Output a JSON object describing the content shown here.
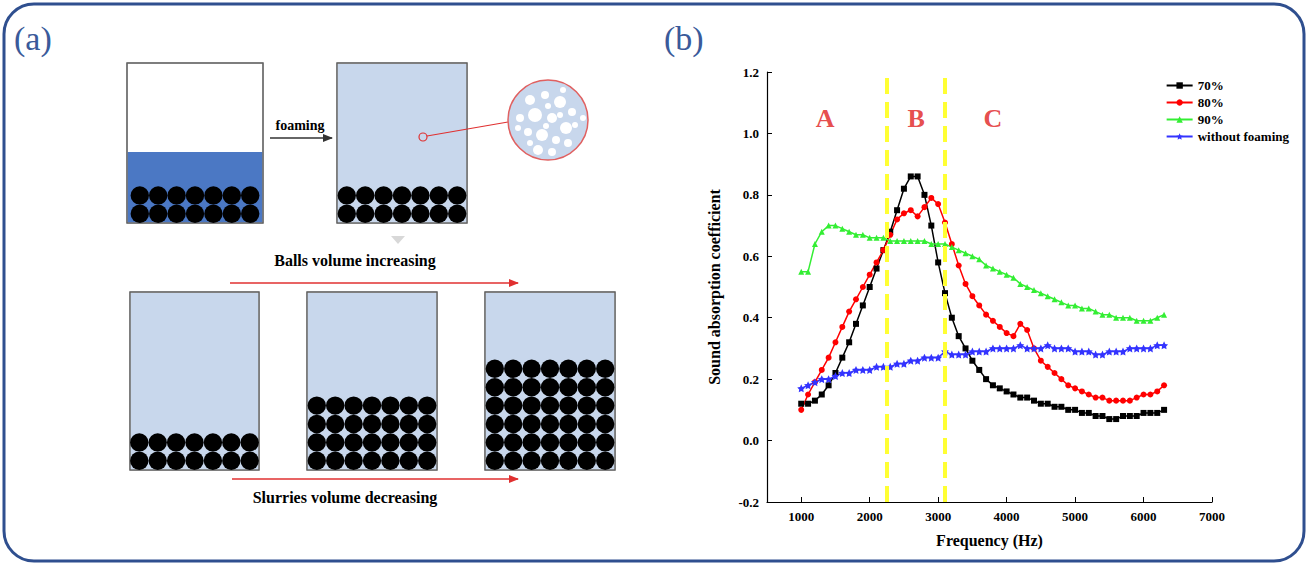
{
  "diagram": {
    "panel_label": "(a)",
    "arrow_label": "foaming",
    "top_caption": "Balls volume increasing",
    "bottom_caption": "Slurries volume decreasing"
  },
  "chart_data": {
    "panel_label": "(b)",
    "type": "line",
    "x_label": "Frequency (Hz)",
    "y_label": "Sound absorption coefficient",
    "x": [
      1000,
      1100,
      1200,
      1300,
      1400,
      1500,
      1600,
      1700,
      1800,
      1900,
      2000,
      2100,
      2200,
      2300,
      2400,
      2500,
      2600,
      2700,
      2800,
      2900,
      3000,
      3100,
      3200,
      3300,
      3400,
      3500,
      3600,
      3700,
      3800,
      3900,
      4000,
      4100,
      4200,
      4300,
      4400,
      4500,
      4600,
      4700,
      4800,
      4900,
      5000,
      5100,
      5200,
      5300,
      5400,
      5500,
      5600,
      5700,
      5800,
      5900,
      6000,
      6100,
      6200,
      6300
    ],
    "series": [
      {
        "name": "70%",
        "color": "#000000",
        "marker": "square",
        "values": [
          0.12,
          0.12,
          0.13,
          0.15,
          0.18,
          0.22,
          0.27,
          0.32,
          0.38,
          0.44,
          0.5,
          0.56,
          0.62,
          0.68,
          0.75,
          0.82,
          0.86,
          0.86,
          0.8,
          0.7,
          0.58,
          0.48,
          0.4,
          0.34,
          0.3,
          0.26,
          0.23,
          0.2,
          0.18,
          0.17,
          0.16,
          0.15,
          0.14,
          0.14,
          0.13,
          0.12,
          0.12,
          0.11,
          0.11,
          0.1,
          0.1,
          0.09,
          0.09,
          0.08,
          0.08,
          0.07,
          0.07,
          0.08,
          0.08,
          0.08,
          0.09,
          0.09,
          0.09,
          0.1
        ]
      },
      {
        "name": "80%",
        "color": "#ff0000",
        "marker": "circle",
        "values": [
          0.1,
          0.15,
          0.19,
          0.23,
          0.27,
          0.32,
          0.37,
          0.42,
          0.46,
          0.5,
          0.54,
          0.58,
          0.62,
          0.67,
          0.72,
          0.74,
          0.75,
          0.73,
          0.76,
          0.79,
          0.77,
          0.71,
          0.64,
          0.57,
          0.51,
          0.47,
          0.44,
          0.41,
          0.39,
          0.37,
          0.35,
          0.34,
          0.38,
          0.36,
          0.3,
          0.26,
          0.24,
          0.22,
          0.2,
          0.18,
          0.17,
          0.16,
          0.15,
          0.14,
          0.14,
          0.13,
          0.13,
          0.13,
          0.13,
          0.14,
          0.15,
          0.15,
          0.16,
          0.18
        ]
      },
      {
        "name": "90%",
        "color": "#33ee33",
        "marker": "triangle",
        "values": [
          0.55,
          0.55,
          0.64,
          0.68,
          0.7,
          0.7,
          0.69,
          0.68,
          0.67,
          0.67,
          0.66,
          0.66,
          0.66,
          0.65,
          0.65,
          0.65,
          0.65,
          0.65,
          0.65,
          0.64,
          0.64,
          0.64,
          0.63,
          0.62,
          0.61,
          0.6,
          0.59,
          0.57,
          0.56,
          0.55,
          0.54,
          0.53,
          0.51,
          0.5,
          0.49,
          0.48,
          0.47,
          0.46,
          0.45,
          0.44,
          0.44,
          0.43,
          0.43,
          0.42,
          0.41,
          0.41,
          0.4,
          0.4,
          0.4,
          0.39,
          0.39,
          0.39,
          0.4,
          0.41
        ]
      },
      {
        "name": "without foaming",
        "color": "#3333ff",
        "marker": "star",
        "values": [
          0.17,
          0.18,
          0.19,
          0.2,
          0.2,
          0.21,
          0.22,
          0.22,
          0.23,
          0.23,
          0.23,
          0.24,
          0.24,
          0.24,
          0.25,
          0.25,
          0.26,
          0.26,
          0.27,
          0.27,
          0.27,
          0.29,
          0.28,
          0.28,
          0.28,
          0.29,
          0.29,
          0.29,
          0.3,
          0.3,
          0.3,
          0.3,
          0.31,
          0.3,
          0.3,
          0.3,
          0.31,
          0.3,
          0.3,
          0.3,
          0.29,
          0.29,
          0.29,
          0.28,
          0.28,
          0.29,
          0.29,
          0.29,
          0.3,
          0.3,
          0.3,
          0.3,
          0.31,
          0.31
        ]
      }
    ],
    "xlim": [
      500,
      7000
    ],
    "xticks": [
      1000,
      2000,
      3000,
      4000,
      5000,
      6000,
      7000
    ],
    "ylim": [
      -0.2,
      1.2
    ],
    "yticks": [
      -0.2,
      {
        "value": 0,
        "label": "0.0"
      },
      0.2,
      0.4,
      0.6,
      0.8,
      {
        "value": 1,
        "label": "1.0"
      },
      1.2
    ],
    "dividers": [
      2250,
      3100
    ],
    "annotations": [
      {
        "text": "A",
        "x": 1350,
        "y": 1.05
      },
      {
        "text": "B",
        "x": 2680,
        "y": 1.05
      },
      {
        "text": "C",
        "x": 3800,
        "y": 1.05
      }
    ],
    "legend": "upper right",
    "grid": false
  }
}
